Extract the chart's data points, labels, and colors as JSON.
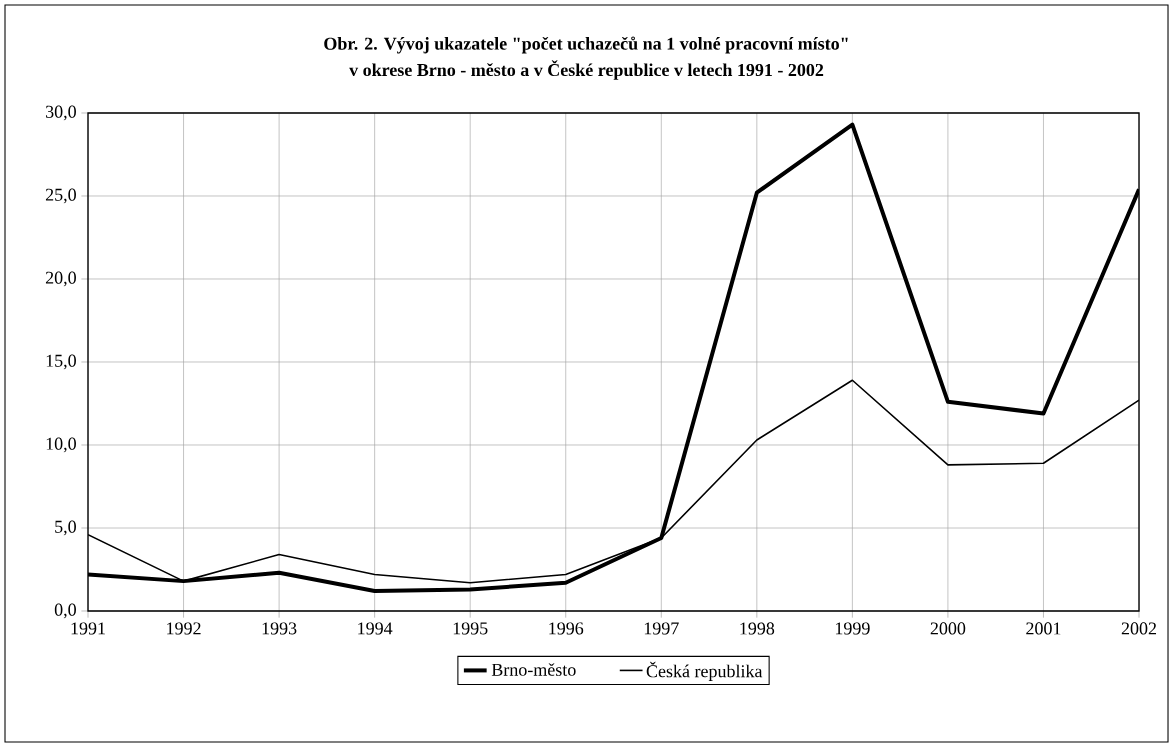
{
  "chart_data": {
    "type": "line",
    "title": "Obr. 2. Vývoj ukazatele \"počet uchazečů na 1 volné pracovní místo\"",
    "subtitle": "v okrese Brno - město a v České republice v letech 1991 - 2002",
    "x": [
      1991,
      1992,
      1993,
      1994,
      1995,
      1996,
      1997,
      1998,
      1999,
      2000,
      2001,
      2002
    ],
    "series": [
      {
        "name": "Brno-město",
        "color": "#000000",
        "values": [
          2.2,
          1.8,
          2.3,
          1.2,
          1.3,
          1.7,
          4.4,
          25.2,
          29.3,
          12.6,
          11.9,
          25.4
        ]
      },
      {
        "name": "Česká republika",
        "color": "#000000",
        "values": [
          4.6,
          1.8,
          3.4,
          2.2,
          1.7,
          2.2,
          4.4,
          10.3,
          13.9,
          8.8,
          8.9,
          12.7
        ]
      }
    ],
    "xlim": [
      1991,
      2002
    ],
    "xticks": [
      1991,
      1992,
      1993,
      1994,
      1995,
      1996,
      1997,
      1998,
      1999,
      2000,
      2001,
      2002
    ],
    "ylim": [
      0,
      30
    ],
    "yticks": [
      {
        "value": 0,
        "label": "0,0"
      },
      {
        "value": 5,
        "label": "5,0"
      },
      {
        "value": 10,
        "label": "10,0"
      },
      {
        "value": 15,
        "label": "15,0"
      },
      {
        "value": 20,
        "label": "20,0"
      },
      {
        "value": 25,
        "label": "25,0"
      },
      {
        "value": 30,
        "label": "30,0"
      }
    ],
    "grid": true,
    "legend": "bottom",
    "marker": "none",
    "line_style": "solid"
  }
}
